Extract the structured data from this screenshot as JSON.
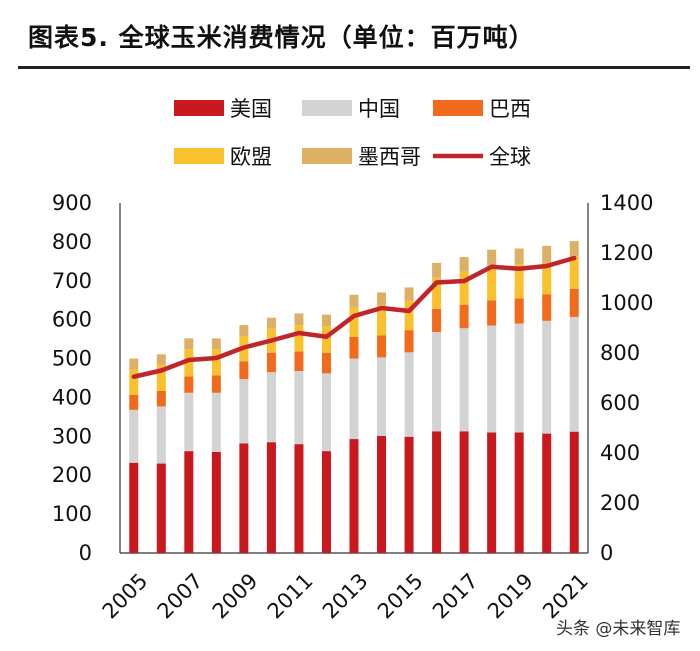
{
  "header": {
    "title": "图表5.    全球玉米消费情况（单位：百万吨）"
  },
  "watermark": {
    "text": "头条 @未来智库"
  },
  "chart_data": {
    "type": "bar",
    "stacked": true,
    "title": "全球玉米消费情况（单位：百万吨）",
    "categories": [
      "2005",
      "2006",
      "2007",
      "2008",
      "2009",
      "2010",
      "2011",
      "2012",
      "2013",
      "2014",
      "2015",
      "2016",
      "2017",
      "2018",
      "2019",
      "2020",
      "2021"
    ],
    "x_tick_labels": [
      "2005",
      "2007",
      "2009",
      "2011",
      "2013",
      "2015",
      "2017",
      "2019",
      "2021"
    ],
    "ylim_left": [
      0,
      900
    ],
    "y_ticks_left": [
      0,
      100,
      200,
      300,
      400,
      500,
      600,
      700,
      800,
      900
    ],
    "ylim_right": [
      0,
      1400
    ],
    "y_ticks_right": [
      0,
      200,
      400,
      600,
      800,
      1000,
      1200,
      1400
    ],
    "series": [
      {
        "name": "美国",
        "color": "#c8191e",
        "axis": "left",
        "values": [
          232,
          230,
          262,
          260,
          282,
          285,
          280,
          262,
          293,
          301,
          299,
          313,
          313,
          310,
          310,
          307,
          312
        ]
      },
      {
        "name": "中国",
        "color": "#d3d3d3",
        "axis": "left",
        "values": [
          136,
          147,
          150,
          152,
          165,
          180,
          188,
          200,
          207,
          202,
          217,
          255,
          265,
          275,
          280,
          290,
          295
        ]
      },
      {
        "name": "巴西",
        "color": "#f26a1b",
        "axis": "left",
        "values": [
          39,
          40,
          42,
          45,
          46,
          50,
          50,
          53,
          56,
          57,
          57,
          60,
          60,
          65,
          65,
          68,
          72
        ]
      },
      {
        "name": "欧盟",
        "color": "#fbc02d",
        "axis": "left",
        "values": [
          65,
          66,
          70,
          67,
          65,
          62,
          68,
          68,
          75,
          77,
          76,
          80,
          85,
          90,
          88,
          82,
          85
        ]
      },
      {
        "name": "墨西哥",
        "color": "#deb066",
        "axis": "left",
        "values": [
          28,
          28,
          28,
          28,
          28,
          28,
          30,
          30,
          33,
          33,
          34,
          38,
          38,
          40,
          40,
          43,
          38
        ]
      },
      {
        "name": "全球",
        "color": "#c0252b",
        "axis": "right",
        "type": "line",
        "values": [
          705,
          730,
          772,
          780,
          822,
          850,
          880,
          865,
          948,
          980,
          968,
          1082,
          1088,
          1145,
          1137,
          1148,
          1180
        ]
      }
    ]
  }
}
